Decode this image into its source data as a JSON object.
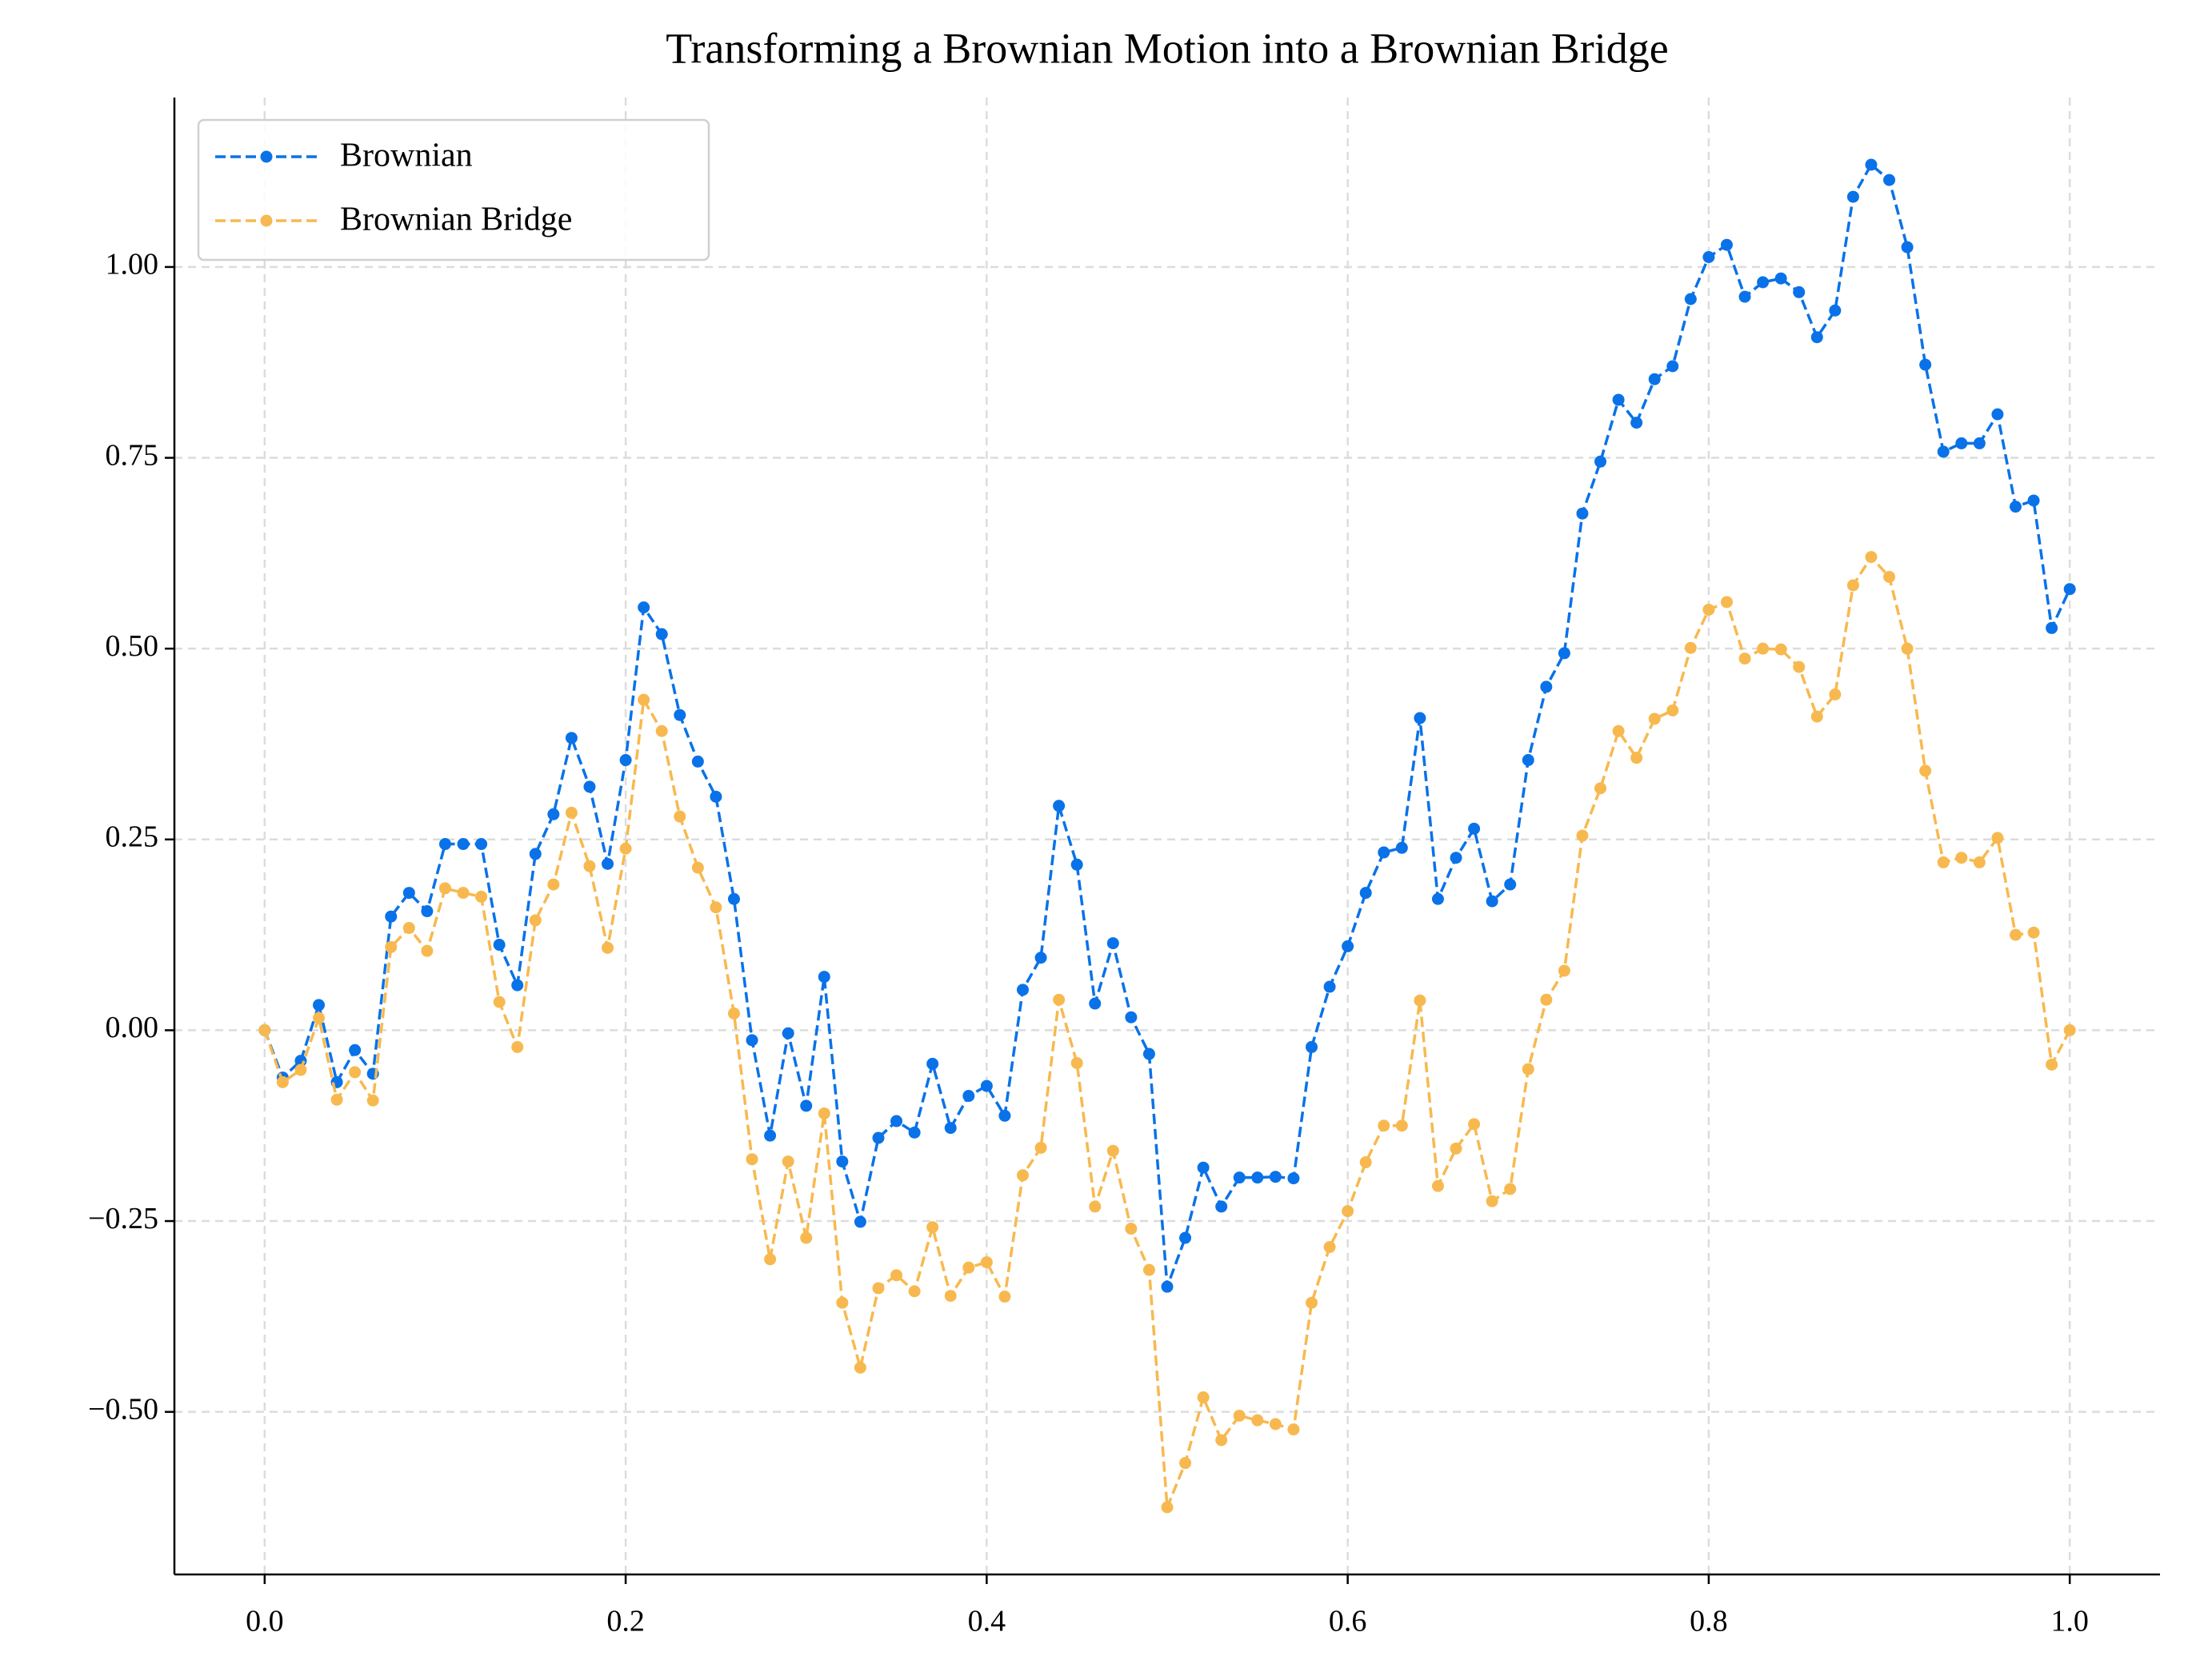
{
  "chart_data": {
    "type": "line",
    "title": "Transforming a Brownian Motion into a Brownian Bridge",
    "x": [
      0,
      0.01,
      0.02,
      0.03,
      0.04,
      0.05,
      0.06,
      0.07,
      0.08,
      0.09,
      0.1,
      0.11,
      0.12,
      0.13,
      0.14,
      0.15,
      0.16,
      0.17,
      0.18,
      0.19,
      0.2,
      0.21,
      0.22,
      0.23,
      0.24,
      0.25,
      0.26,
      0.27,
      0.28,
      0.29,
      0.3,
      0.31,
      0.32,
      0.33,
      0.34,
      0.35,
      0.36,
      0.37,
      0.38,
      0.39,
      0.4,
      0.41,
      0.42,
      0.43,
      0.44,
      0.45,
      0.46,
      0.47,
      0.48,
      0.49,
      0.5,
      0.51,
      0.52,
      0.53,
      0.54,
      0.55,
      0.56,
      0.57,
      0.58,
      0.59,
      0.6,
      0.61,
      0.62,
      0.63,
      0.64,
      0.65,
      0.66,
      0.67,
      0.68,
      0.69,
      0.7,
      0.71,
      0.72,
      0.73,
      0.74,
      0.75,
      0.76,
      0.77,
      0.78,
      0.79,
      0.8,
      0.81,
      0.82,
      0.83,
      0.84,
      0.85,
      0.86,
      0.87,
      0.88,
      0.89,
      0.9,
      0.91,
      0.92,
      0.93,
      0.94,
      0.95,
      0.96,
      0.97,
      0.98,
      0.99,
      1
    ],
    "series": [
      {
        "name": "Brownian",
        "color": "#0a72e8",
        "values": [
          0,
          -0.062,
          -0.04,
          0.033,
          -0.068,
          -0.026,
          -0.057,
          0.149,
          0.18,
          0.156,
          0.244,
          0.244,
          0.244,
          0.112,
          0.059,
          0.231,
          0.283,
          0.383,
          0.319,
          0.218,
          0.354,
          0.554,
          0.519,
          0.413,
          0.352,
          0.306,
          0.172,
          -0.013,
          -0.138,
          -0.004,
          -0.099,
          0.07,
          -0.172,
          -0.251,
          -0.141,
          -0.119,
          -0.134,
          -0.044,
          -0.128,
          -0.086,
          -0.073,
          -0.112,
          0.053,
          0.095,
          0.294,
          0.217,
          0.035,
          0.114,
          0.017,
          -0.031,
          -0.336,
          -0.272,
          -0.18,
          -0.231,
          -0.193,
          -0.193,
          -0.192,
          -0.194,
          -0.022,
          0.057,
          0.11,
          0.18,
          0.233,
          0.239,
          0.409,
          0.172,
          0.226,
          0.264,
          0.169,
          0.191,
          0.354,
          0.45,
          0.494,
          0.677,
          0.745,
          0.826,
          0.796,
          0.853,
          0.87,
          0.958,
          1.013,
          1.029,
          0.961,
          0.98,
          0.985,
          0.967,
          0.908,
          0.943,
          1.092,
          1.134,
          1.114,
          1.026,
          0.872,
          0.758,
          0.769,
          0.769,
          0.807,
          0.686,
          0.694,
          0.527,
          0.578
        ]
      },
      {
        "name": "Brownian Bridge",
        "color": "#f7b94f",
        "values": [
          0,
          -0.068,
          -0.052,
          0.016,
          -0.091,
          -0.055,
          -0.092,
          0.109,
          0.134,
          0.104,
          0.186,
          0.18,
          0.175,
          0.037,
          -0.022,
          0.144,
          0.191,
          0.285,
          0.215,
          0.108,
          0.238,
          0.433,
          0.392,
          0.28,
          0.213,
          0.161,
          0.022,
          -0.169,
          -0.3,
          -0.172,
          -0.272,
          -0.109,
          -0.357,
          -0.442,
          -0.338,
          -0.321,
          -0.342,
          -0.258,
          -0.348,
          -0.311,
          -0.304,
          -0.349,
          -0.19,
          -0.154,
          0.04,
          -0.043,
          -0.231,
          -0.158,
          -0.26,
          -0.314,
          -0.625,
          -0.567,
          -0.481,
          -0.537,
          -0.505,
          -0.511,
          -0.516,
          -0.523,
          -0.357,
          -0.284,
          -0.237,
          -0.173,
          -0.125,
          -0.125,
          0.039,
          -0.204,
          -0.155,
          -0.123,
          -0.224,
          -0.208,
          -0.051,
          0.04,
          0.078,
          0.255,
          0.317,
          0.392,
          0.357,
          0.408,
          0.419,
          0.501,
          0.551,
          0.561,
          0.487,
          0.5,
          0.499,
          0.476,
          0.411,
          0.44,
          0.583,
          0.62,
          0.594,
          0.5,
          0.34,
          0.22,
          0.226,
          0.22,
          0.252,
          0.125,
          0.128,
          -0.045,
          0
        ]
      }
    ],
    "xlim": [
      -0.05,
      1.05
    ],
    "ylim": [
      -0.713,
      1.222
    ],
    "xticks": [
      {
        "value": 0,
        "label": "0.0"
      },
      0.2,
      0.4,
      0.6,
      0.8,
      {
        "value": 1,
        "label": "1.0"
      }
    ],
    "yticks": [
      {
        "value": -0.5,
        "label": "−0.50"
      },
      {
        "value": -0.25,
        "label": "−0.25"
      },
      {
        "value": 0,
        "label": "0.00"
      },
      0.25,
      {
        "value": 0.5,
        "label": "0.50"
      },
      0.75,
      {
        "value": 1,
        "label": "1.00"
      }
    ],
    "grid": true,
    "legend": "upper left",
    "line_style": "dashed",
    "marker": "circle"
  }
}
